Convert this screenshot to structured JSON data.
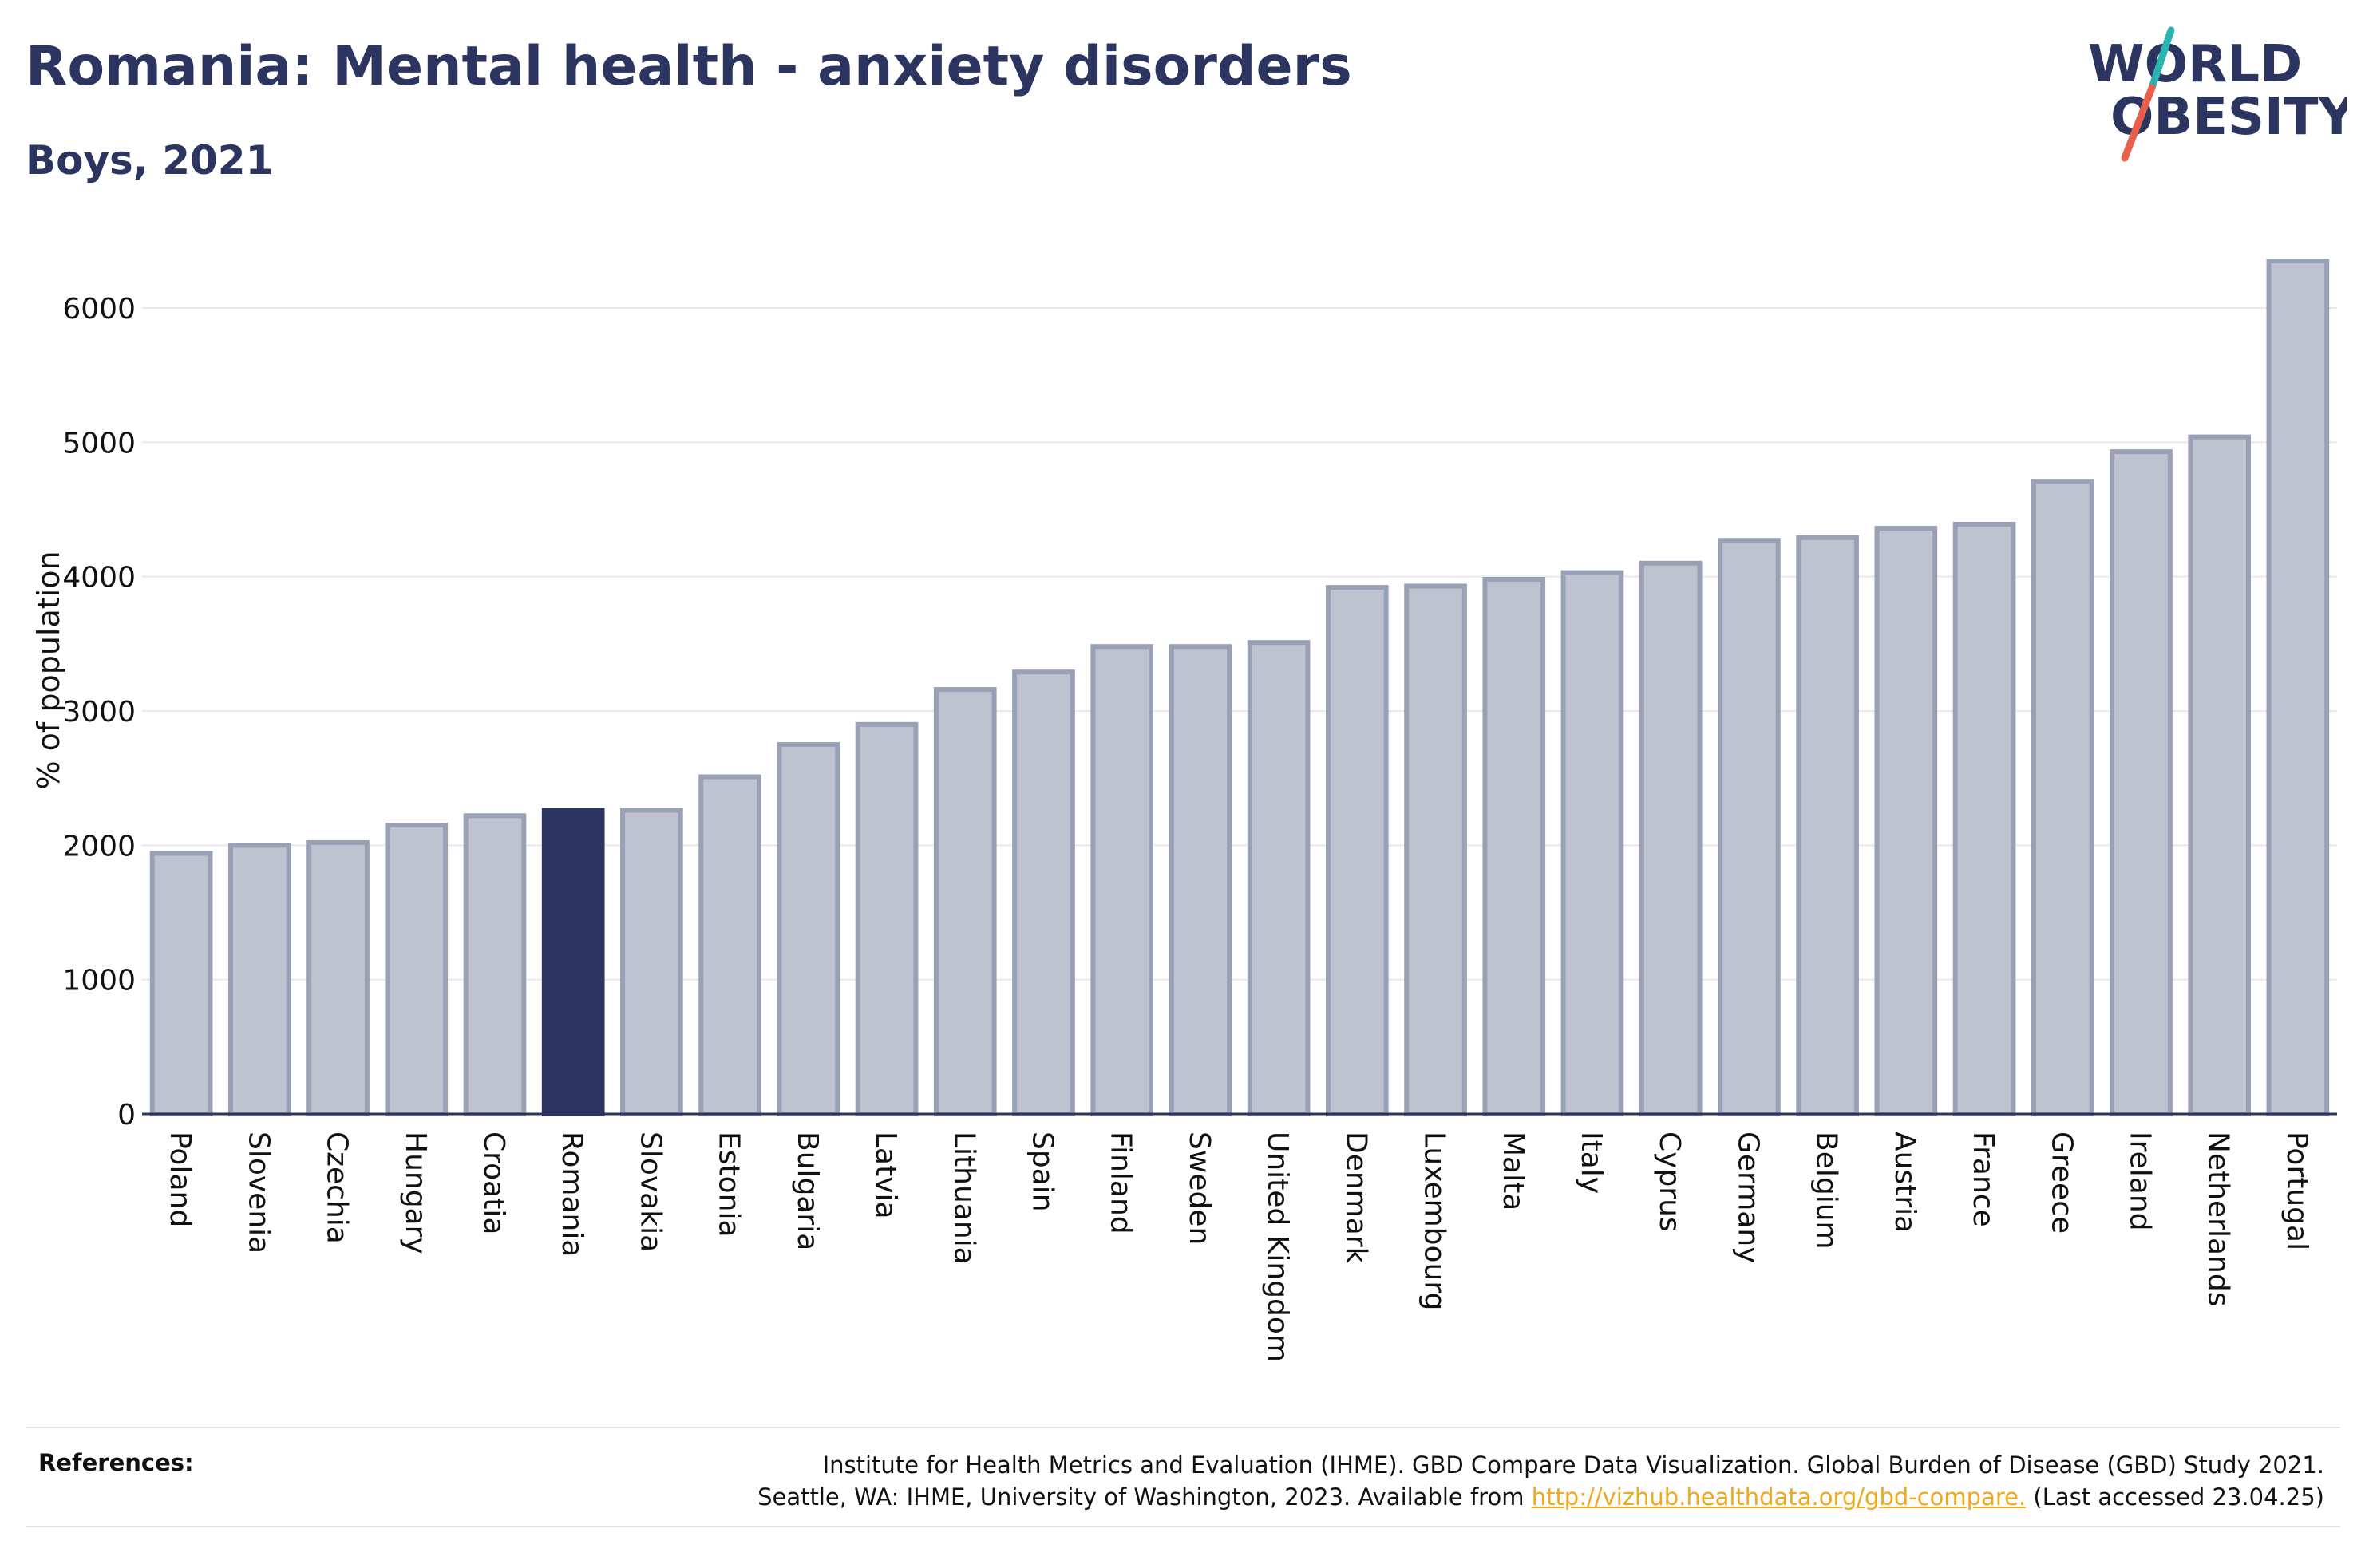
{
  "header": {
    "title": "Romania: Mental health - anxiety disorders",
    "subtitle": "Boys, 2021"
  },
  "logo": {
    "line1": "WORLD",
    "line2": "OBESITY",
    "text_color": "#2b3560",
    "slash_colors": [
      "#2bb3b1",
      "#e8604c"
    ]
  },
  "references": {
    "label": "References:",
    "line1": "Institute for Health Metrics and Evaluation (IHME). GBD Compare Data Visualization. Global Burden of Disease (GBD) Study 2021.",
    "line2_prefix": "Seattle, WA: IHME, University of Washington, 2023. Available from ",
    "link_text": "http://vizhub.healthdata.org/gbd-compare.",
    "line2_suffix": " (Last accessed 23.04.25)"
  },
  "chart_data": {
    "type": "bar",
    "title": "Romania: Mental health - anxiety disorders",
    "subtitle": "Boys, 2021",
    "xlabel": "",
    "ylabel": "% of population",
    "ylim": [
      0,
      6500
    ],
    "yticks": [
      0,
      1000,
      2000,
      3000,
      4000,
      5000,
      6000
    ],
    "grid": true,
    "highlight": "Romania",
    "colors": {
      "bar": "#bfc3d0",
      "bar_border": "#9aa0b5",
      "highlight": "#2b3560",
      "grid": "#e8e8ee",
      "axis": "#2b3560"
    },
    "categories": [
      "Poland",
      "Slovenia",
      "Czechia",
      "Hungary",
      "Croatia",
      "Romania",
      "Slovakia",
      "Estonia",
      "Bulgaria",
      "Latvia",
      "Lithuania",
      "Spain",
      "Finland",
      "Sweden",
      "United Kingdom",
      "Denmark",
      "Luxembourg",
      "Malta",
      "Italy",
      "Cyprus",
      "Germany",
      "Belgium",
      "Austria",
      "France",
      "Greece",
      "Ireland",
      "Netherlands",
      "Portugal"
    ],
    "values": [
      1940,
      2000,
      2020,
      2150,
      2220,
      2260,
      2260,
      2510,
      2750,
      2900,
      3160,
      3290,
      3480,
      3480,
      3510,
      3920,
      3930,
      3980,
      4030,
      4100,
      4270,
      4290,
      4360,
      4390,
      4710,
      4930,
      5040,
      6350
    ]
  }
}
